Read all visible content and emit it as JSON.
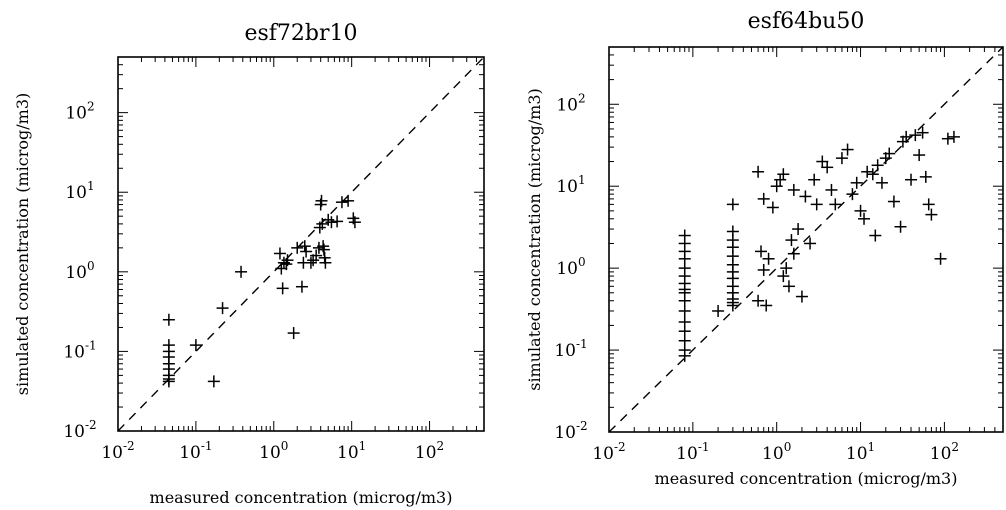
{
  "chart_data": [
    {
      "type": "scatter",
      "title": "esf72br10",
      "xlabel": "measured concentration (microg/m3)",
      "ylabel": "simulated concentration (microg/m3)",
      "x_scale": "log",
      "y_scale": "log",
      "xlim": [
        0.01,
        500
      ],
      "ylim": [
        0.01,
        500
      ],
      "x_ticks": [
        {
          "base": "10",
          "exp": "-2"
        },
        {
          "base": "10",
          "exp": "-1"
        },
        {
          "base": "10",
          "exp": "0"
        },
        {
          "base": "10",
          "exp": "1"
        },
        {
          "base": "10",
          "exp": "2"
        }
      ],
      "y_ticks": [
        {
          "base": "10",
          "exp": "-2"
        },
        {
          "base": "10",
          "exp": "-1"
        },
        {
          "base": "10",
          "exp": "0"
        },
        {
          "base": "10",
          "exp": "1"
        },
        {
          "base": "10",
          "exp": "2"
        }
      ],
      "reference_line": "1:1 dashed",
      "marker": "plus",
      "grid": false,
      "points": [
        [
          0.045,
          0.25
        ],
        [
          0.045,
          0.12
        ],
        [
          0.045,
          0.1
        ],
        [
          0.045,
          0.085
        ],
        [
          0.045,
          0.07
        ],
        [
          0.045,
          0.06
        ],
        [
          0.045,
          0.05
        ],
        [
          0.045,
          0.045
        ],
        [
          0.045,
          0.042
        ],
        [
          0.1,
          0.12
        ],
        [
          0.17,
          0.042
        ],
        [
          0.22,
          0.35
        ],
        [
          0.38,
          1.0
        ],
        [
          1.2,
          1.7
        ],
        [
          1.25,
          1.1
        ],
        [
          1.3,
          0.62
        ],
        [
          1.35,
          1.3
        ],
        [
          1.45,
          1.25
        ],
        [
          1.5,
          1.4
        ],
        [
          1.8,
          0.17
        ],
        [
          2.0,
          2.0
        ],
        [
          2.3,
          0.65
        ],
        [
          2.4,
          1.3
        ],
        [
          2.5,
          2.1
        ],
        [
          2.6,
          1.8
        ],
        [
          3.0,
          1.3
        ],
        [
          3.2,
          1.4
        ],
        [
          3.5,
          1.6
        ],
        [
          3.8,
          2.0
        ],
        [
          3.9,
          3.6
        ],
        [
          4.0,
          7.0
        ],
        [
          4.1,
          7.8
        ],
        [
          4.2,
          4.0
        ],
        [
          4.3,
          2.1
        ],
        [
          4.4,
          1.9
        ],
        [
          4.5,
          1.5
        ],
        [
          4.6,
          1.3
        ],
        [
          5.0,
          4.5
        ],
        [
          5.5,
          4.2
        ],
        [
          6.5,
          4.3
        ],
        [
          7.5,
          7.5
        ],
        [
          9.0,
          7.8
        ],
        [
          10.5,
          4.7
        ],
        [
          11,
          4.2
        ]
      ]
    },
    {
      "type": "scatter",
      "title": "esf64bu50",
      "xlabel": "measured concentration (microg/m3)",
      "ylabel": "simulated concentration (microg/m3)",
      "x_scale": "log",
      "y_scale": "log",
      "xlim": [
        0.01,
        500
      ],
      "ylim": [
        0.01,
        500
      ],
      "x_ticks": [
        {
          "base": "10",
          "exp": "-2"
        },
        {
          "base": "10",
          "exp": "-1"
        },
        {
          "base": "10",
          "exp": "0"
        },
        {
          "base": "10",
          "exp": "1"
        },
        {
          "base": "10",
          "exp": "2"
        }
      ],
      "y_ticks": [
        {
          "base": "10",
          "exp": "-2"
        },
        {
          "base": "10",
          "exp": "-1"
        },
        {
          "base": "10",
          "exp": "0"
        },
        {
          "base": "10",
          "exp": "1"
        },
        {
          "base": "10",
          "exp": "2"
        }
      ],
      "reference_line": "1:1 dashed",
      "marker": "plus",
      "grid": false,
      "points": [
        [
          0.08,
          2.5
        ],
        [
          0.08,
          2.0
        ],
        [
          0.08,
          1.6
        ],
        [
          0.08,
          1.3
        ],
        [
          0.08,
          1.0
        ],
        [
          0.08,
          0.8
        ],
        [
          0.08,
          0.65
        ],
        [
          0.08,
          0.55
        ],
        [
          0.08,
          0.5
        ],
        [
          0.08,
          0.4
        ],
        [
          0.08,
          0.3
        ],
        [
          0.08,
          0.22
        ],
        [
          0.08,
          0.17
        ],
        [
          0.08,
          0.13
        ],
        [
          0.08,
          0.1
        ],
        [
          0.08,
          0.085
        ],
        [
          0.3,
          6.0
        ],
        [
          0.3,
          2.8
        ],
        [
          0.3,
          2.2
        ],
        [
          0.3,
          1.8
        ],
        [
          0.3,
          1.4
        ],
        [
          0.3,
          1.1
        ],
        [
          0.3,
          0.9
        ],
        [
          0.3,
          0.75
        ],
        [
          0.3,
          0.6
        ],
        [
          0.3,
          0.5
        ],
        [
          0.3,
          0.42
        ],
        [
          0.3,
          0.38
        ],
        [
          0.3,
          0.35
        ],
        [
          0.2,
          0.3
        ],
        [
          0.6,
          0.4
        ],
        [
          0.65,
          1.6
        ],
        [
          0.7,
          0.95
        ],
        [
          0.75,
          0.35
        ],
        [
          0.8,
          1.3
        ],
        [
          1.0,
          10
        ],
        [
          1.1,
          12
        ],
        [
          1.2,
          0.8
        ],
        [
          1.3,
          1.0
        ],
        [
          1.4,
          0.6
        ],
        [
          1.5,
          2.2
        ],
        [
          1.6,
          1.5
        ],
        [
          1.8,
          3.0
        ],
        [
          2.0,
          0.45
        ],
        [
          2.2,
          7.5
        ],
        [
          2.5,
          2.0
        ],
        [
          3.0,
          6.0
        ],
        [
          3.5,
          20
        ],
        [
          0.6,
          15
        ],
        [
          0.7,
          7.0
        ],
        [
          0.9,
          5.5
        ],
        [
          1.2,
          14
        ],
        [
          1.6,
          9.0
        ],
        [
          2.8,
          12
        ],
        [
          4.0,
          17
        ],
        [
          4.5,
          9.0
        ],
        [
          5.0,
          6.0
        ],
        [
          6.0,
          22
        ],
        [
          7.0,
          28
        ],
        [
          8.0,
          8.0
        ],
        [
          9.0,
          11
        ],
        [
          10,
          5.0
        ],
        [
          11,
          4.0
        ],
        [
          12,
          15
        ],
        [
          14,
          14
        ],
        [
          15,
          2.5
        ],
        [
          16,
          18
        ],
        [
          18,
          11
        ],
        [
          20,
          22
        ],
        [
          22,
          25
        ],
        [
          25,
          6.5
        ],
        [
          30,
          3.2
        ],
        [
          32,
          35
        ],
        [
          35,
          40
        ],
        [
          40,
          12
        ],
        [
          45,
          42
        ],
        [
          50,
          24
        ],
        [
          55,
          45
        ],
        [
          60,
          13
        ],
        [
          65,
          6.0
        ],
        [
          70,
          4.5
        ],
        [
          90,
          1.3
        ],
        [
          110,
          38
        ],
        [
          130,
          40
        ]
      ]
    }
  ]
}
